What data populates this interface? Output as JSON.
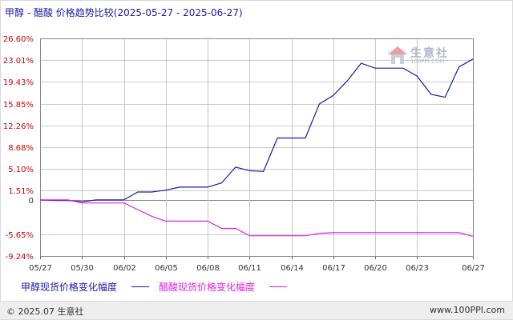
{
  "title": "甲醇 - 醋酸 价格趋势比较(2025-05-27 - 2025-06-27)",
  "watermark": {
    "text": "生意社",
    "sub": "100PPI.COM"
  },
  "footer": {
    "copyright": "© 2025.07 生意社",
    "site": "www.100PPI.com"
  },
  "colors": {
    "methanol": "#1a1aa6",
    "acetic": "#dd22dd",
    "ytick": "#cc0000"
  },
  "chart_data": {
    "type": "line",
    "title": "甲醇 - 醋酸 价格趋势比较(2025-05-27 - 2025-06-27)",
    "xlabel": "",
    "ylabel": "",
    "ylim": [
      -9.24,
      26.6
    ],
    "yticks": [
      "26.60%",
      "23.01%",
      "19.43%",
      "15.85%",
      "12.26%",
      "8.68%",
      "5.10%",
      "1.51%",
      "0",
      "-5.65%",
      "-9.24%"
    ],
    "ytick_values": [
      26.6,
      23.01,
      19.43,
      15.85,
      12.26,
      8.68,
      5.1,
      1.51,
      0,
      -5.65,
      -9.24
    ],
    "xticks": [
      "05/27",
      "05/30",
      "06/02",
      "06/05",
      "06/08",
      "06/11",
      "06/14",
      "06/17",
      "06/20",
      "06/23",
      "06/27"
    ],
    "xtick_days": [
      0,
      3,
      6,
      9,
      12,
      15,
      18,
      21,
      24,
      27,
      31
    ],
    "x_days": [
      0,
      1,
      2,
      3,
      4,
      5,
      6,
      7,
      8,
      9,
      10,
      11,
      12,
      13,
      14,
      15,
      16,
      17,
      18,
      19,
      20,
      21,
      22,
      23,
      24,
      25,
      26,
      27,
      28,
      29,
      30,
      31
    ],
    "grid": true,
    "legend_position": "bottom",
    "series": [
      {
        "name": "甲醇现货价格变化幅度",
        "values": [
          0.0,
          -0.1,
          -0.1,
          -0.3,
          0.0,
          0.0,
          0.0,
          1.3,
          1.3,
          1.6,
          2.1,
          2.1,
          2.1,
          2.8,
          5.4,
          4.8,
          4.7,
          10.2,
          10.2,
          10.2,
          15.8,
          17.2,
          19.6,
          22.5,
          21.7,
          21.7,
          21.7,
          20.4,
          17.4,
          16.9,
          21.9,
          23.2
        ]
      },
      {
        "name": "醋酸现货价格变化幅度",
        "values": [
          0.0,
          0.0,
          0.0,
          -0.5,
          -0.5,
          -0.5,
          -0.5,
          -1.6,
          -2.7,
          -3.5,
          -3.5,
          -3.5,
          -3.5,
          -4.7,
          -4.7,
          -5.9,
          -5.9,
          -5.9,
          -5.9,
          -5.9,
          -5.5,
          -5.4,
          -5.4,
          -5.4,
          -5.4,
          -5.4,
          -5.4,
          -5.4,
          -5.4,
          -5.4,
          -5.4,
          -6.0
        ]
      }
    ]
  }
}
